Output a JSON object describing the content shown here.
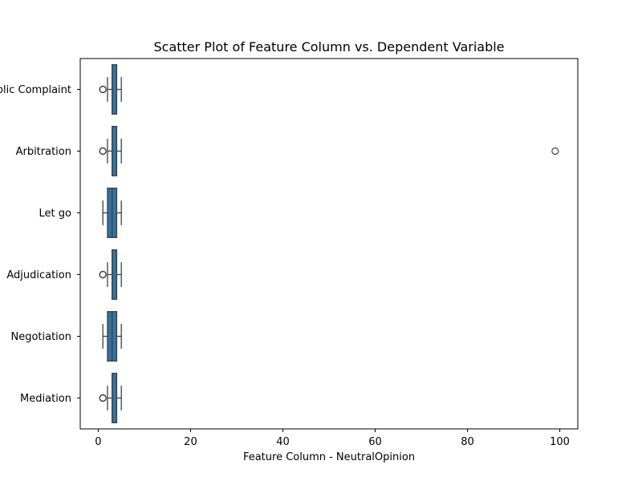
{
  "chart_data": {
    "type": "boxplot",
    "orientation": "horizontal",
    "title": "Scatter Plot of Feature Column vs. Dependent Variable",
    "xlabel": "Feature Column - NeutralOpinion",
    "ylabel": "",
    "xlim": [
      -3.9,
      103.9
    ],
    "xticks": [
      0,
      20,
      40,
      60,
      80,
      100
    ],
    "grid": false,
    "legend": "none",
    "box_color": "#3274a1",
    "categories": [
      "Public Complaint",
      "Arbitration",
      "Let go",
      "Adjudication",
      "Negotiation",
      "Mediation"
    ],
    "boxes": [
      {
        "category": "Public Complaint",
        "whislo": 2,
        "q1": 3,
        "med": 3,
        "q3": 4,
        "whishi": 5,
        "fliers": [
          1,
          1,
          1
        ]
      },
      {
        "category": "Arbitration",
        "whislo": 2,
        "q1": 3,
        "med": 3,
        "q3": 4,
        "whishi": 5,
        "fliers": [
          1,
          1,
          1,
          99
        ]
      },
      {
        "category": "Let go",
        "whislo": 1,
        "q1": 2,
        "med": 3,
        "q3": 4,
        "whishi": 5,
        "fliers": []
      },
      {
        "category": "Adjudication",
        "whislo": 2,
        "q1": 3,
        "med": 3,
        "q3": 4,
        "whishi": 5,
        "fliers": [
          1,
          1,
          1
        ]
      },
      {
        "category": "Negotiation",
        "whislo": 1,
        "q1": 2,
        "med": 3,
        "q3": 4,
        "whishi": 5,
        "fliers": []
      },
      {
        "category": "Mediation",
        "whislo": 2,
        "q1": 3,
        "med": 3,
        "q3": 4,
        "whishi": 5,
        "fliers": [
          1,
          1,
          1
        ]
      }
    ]
  }
}
